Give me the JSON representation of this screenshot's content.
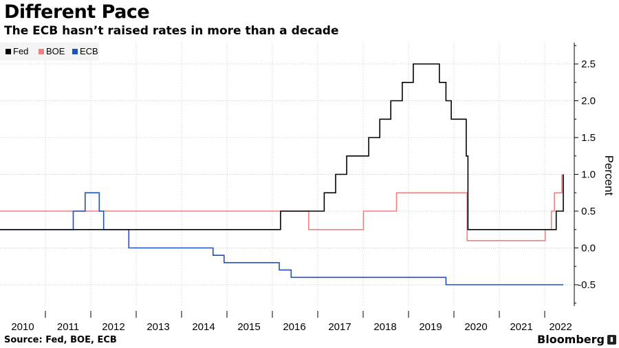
{
  "header": {
    "title": "Different Pace",
    "subtitle": "The ECB hasn’t raised rates in more than a decade"
  },
  "footer": {
    "source": "Source: Fed, BOE, ECB",
    "brand": "Bloomberg"
  },
  "chart_data": {
    "type": "line",
    "title": "Different Pace",
    "subtitle": "The ECB hasn’t raised rates in more than a decade",
    "xlabel": "",
    "ylabel": "Percent",
    "xlim": [
      2009.6,
      2022.3
    ],
    "ylim": [
      -0.8,
      2.8
    ],
    "x_ticks": [
      2010,
      2011,
      2012,
      2013,
      2014,
      2015,
      2016,
      2017,
      2018,
      2019,
      2020,
      2021,
      2022
    ],
    "x_tick_labels": [
      "2010",
      "2011",
      "2012",
      "2013",
      "2014",
      "2015",
      "2016",
      "2017",
      "2018",
      "2019",
      "2020",
      "2021",
      "2022"
    ],
    "y_ticks": [
      -0.5,
      0,
      0.5,
      1,
      1.5,
      2,
      2.5
    ],
    "y_tick_labels": [
      "-0.5",
      "0.0",
      "0.5",
      "1.0",
      "1.5",
      "2.0",
      "2.5"
    ],
    "grid": true,
    "legend_position": "top-left",
    "y_axis_side": "right",
    "step": true,
    "series": [
      {
        "name": "Fed",
        "color": "#000000",
        "points": [
          [
            2009.6,
            0.25
          ],
          [
            2015.96,
            0.25
          ],
          [
            2015.96,
            0.5
          ],
          [
            2016.95,
            0.5
          ],
          [
            2016.95,
            0.75
          ],
          [
            2017.21,
            0.75
          ],
          [
            2017.21,
            1.0
          ],
          [
            2017.46,
            1.0
          ],
          [
            2017.46,
            1.25
          ],
          [
            2017.96,
            1.25
          ],
          [
            2017.96,
            1.5
          ],
          [
            2018.21,
            1.5
          ],
          [
            2018.21,
            1.75
          ],
          [
            2018.46,
            1.75
          ],
          [
            2018.46,
            2.0
          ],
          [
            2018.72,
            2.0
          ],
          [
            2018.72,
            2.25
          ],
          [
            2018.97,
            2.25
          ],
          [
            2018.97,
            2.5
          ],
          [
            2019.56,
            2.5
          ],
          [
            2019.56,
            2.25
          ],
          [
            2019.71,
            2.25
          ],
          [
            2019.71,
            2.0
          ],
          [
            2019.83,
            2.0
          ],
          [
            2019.83,
            1.75
          ],
          [
            2020.17,
            1.75
          ],
          [
            2020.17,
            1.25
          ],
          [
            2020.21,
            1.25
          ],
          [
            2020.21,
            0.25
          ],
          [
            2022.21,
            0.25
          ],
          [
            2022.21,
            0.5
          ],
          [
            2022.37,
            0.5
          ],
          [
            2022.37,
            1.0
          ]
        ]
      },
      {
        "name": "BOE",
        "color": "#f07f7f",
        "points": [
          [
            2009.6,
            0.5
          ],
          [
            2016.6,
            0.5
          ],
          [
            2016.6,
            0.25
          ],
          [
            2017.84,
            0.25
          ],
          [
            2017.84,
            0.5
          ],
          [
            2018.59,
            0.5
          ],
          [
            2018.59,
            0.75
          ],
          [
            2020.19,
            0.75
          ],
          [
            2020.19,
            0.1
          ],
          [
            2021.96,
            0.1
          ],
          [
            2021.96,
            0.25
          ],
          [
            2022.1,
            0.25
          ],
          [
            2022.1,
            0.5
          ],
          [
            2022.17,
            0.5
          ],
          [
            2022.17,
            0.75
          ],
          [
            2022.34,
            0.75
          ],
          [
            2022.34,
            1.0
          ]
        ]
      },
      {
        "name": "ECB",
        "color": "#1f4fbf",
        "points": [
          [
            2009.6,
            0.25
          ],
          [
            2011.26,
            0.25
          ],
          [
            2011.26,
            0.5
          ],
          [
            2011.53,
            0.5
          ],
          [
            2011.53,
            0.75
          ],
          [
            2011.85,
            0.75
          ],
          [
            2011.85,
            0.5
          ],
          [
            2011.95,
            0.5
          ],
          [
            2011.95,
            0.25
          ],
          [
            2012.52,
            0.25
          ],
          [
            2012.52,
            0.0
          ],
          [
            2014.43,
            0.0
          ],
          [
            2014.43,
            -0.1
          ],
          [
            2014.68,
            -0.1
          ],
          [
            2014.68,
            -0.2
          ],
          [
            2015.93,
            -0.2
          ],
          [
            2015.93,
            -0.3
          ],
          [
            2016.2,
            -0.3
          ],
          [
            2016.2,
            -0.4
          ],
          [
            2019.71,
            -0.4
          ],
          [
            2019.71,
            -0.5
          ],
          [
            2022.37,
            -0.5
          ]
        ]
      }
    ]
  }
}
